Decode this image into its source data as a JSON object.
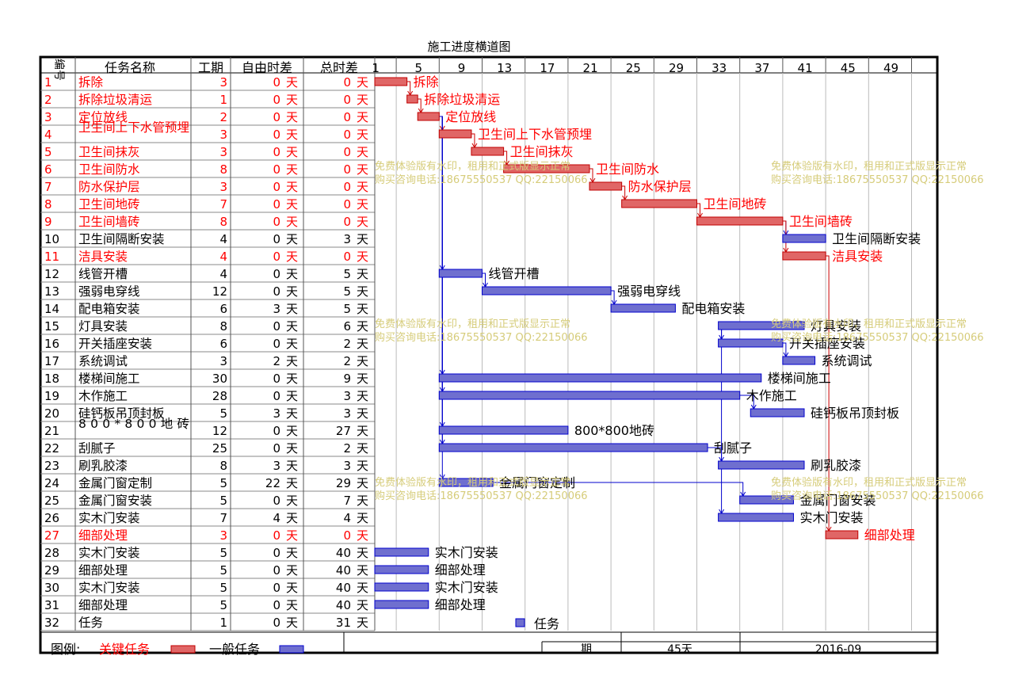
{
  "chart_title": "施工进度横道图",
  "columns": {
    "id": "编号",
    "name": "任务名称",
    "duration": "工期",
    "free_float": "自由时差",
    "total_float": "总时差"
  },
  "unit": "天",
  "timeline_ticks": [
    1,
    5,
    9,
    13,
    17,
    21,
    25,
    29,
    33,
    37,
    41,
    45,
    49
  ],
  "colors": {
    "critical_text": "#ff0000",
    "normal_text": "#000000",
    "critical_bar_fill": "#e06666",
    "critical_bar_stroke": "#c00000",
    "normal_bar_fill": "#6f6fcf",
    "normal_bar_stroke": "#0000cc",
    "link_critical": "#cc0000",
    "link_normal": "#0000cc",
    "watermark": "#d6cc7a"
  },
  "watermark_lines": [
    "免费体验版有水印，租用和正式版显示正常",
    "购买咨询电话:18675550537 QQ:22150066"
  ],
  "legend": {
    "label": "图例:",
    "critical": "关键任务",
    "normal": "一般任务",
    "task_legend": "任务",
    "footer_period_label": "期",
    "footer_duration": "45天",
    "footer_date": "2016-09"
  },
  "chart_data": {
    "type": "gantt",
    "title": "施工进度横道图",
    "x_unit": "天",
    "xlim": [
      1,
      50
    ],
    "tasks": [
      {
        "id": "1",
        "name": "拆除",
        "duration": "3",
        "free": "0",
        "total": "0",
        "critical": true,
        "start": 1,
        "bar_label": "拆除"
      },
      {
        "id": "2",
        "name": "拆除垃圾清运",
        "duration": "1",
        "free": "0",
        "total": "0",
        "critical": true,
        "start": 4,
        "bar_label": "拆除垃圾清运"
      },
      {
        "id": "3",
        "name": "定位放线",
        "duration": "2",
        "free": "0",
        "total": "0",
        "critical": true,
        "start": 5,
        "bar_label": "定位放线"
      },
      {
        "id": "4",
        "name": "卫生间上下水管预埋",
        "duration": "3",
        "free": "0",
        "total": "0",
        "critical": true,
        "start": 7,
        "bar_label": "卫生间上下水管预埋"
      },
      {
        "id": "5",
        "name": "卫生间抹灰",
        "duration": "3",
        "free": "0",
        "total": "0",
        "critical": true,
        "start": 10,
        "bar_label": "卫生间抹灰"
      },
      {
        "id": "6",
        "name": "卫生间防水",
        "duration": "8",
        "free": "0",
        "total": "0",
        "critical": true,
        "start": 13,
        "bar_label": "卫生间防水"
      },
      {
        "id": "7",
        "name": "防水保护层",
        "duration": "3",
        "free": "0",
        "total": "0",
        "critical": true,
        "start": 21,
        "bar_label": "防水保护层"
      },
      {
        "id": "8",
        "name": "卫生间地砖",
        "duration": "7",
        "free": "0",
        "total": "0",
        "critical": true,
        "start": 24,
        "bar_label": "卫生间地砖"
      },
      {
        "id": "9",
        "name": "卫生间墙砖",
        "duration": "8",
        "free": "0",
        "total": "0",
        "critical": true,
        "start": 31,
        "bar_label": "卫生间墙砖"
      },
      {
        "id": "10",
        "name": "卫生间隔断安装",
        "duration": "4",
        "free": "0",
        "total": "3",
        "critical": false,
        "start": 39,
        "bar_label": "卫生间隔断安装"
      },
      {
        "id": "11",
        "name": "洁具安装",
        "duration": "4",
        "free": "0",
        "total": "0",
        "critical": true,
        "start": 39,
        "bar_label": "洁具安装"
      },
      {
        "id": "12",
        "name": "线管开槽",
        "duration": "4",
        "free": "0",
        "total": "5",
        "critical": false,
        "start": 7,
        "bar_label": "线管开槽"
      },
      {
        "id": "13",
        "name": "强弱电穿线",
        "duration": "12",
        "free": "0",
        "total": "5",
        "critical": false,
        "start": 11,
        "bar_label": "强弱电穿线"
      },
      {
        "id": "14",
        "name": "配电箱安装",
        "duration": "6",
        "free": "3",
        "total": "5",
        "critical": false,
        "start": 23,
        "bar_label": "配电箱安装"
      },
      {
        "id": "15",
        "name": "灯具安装",
        "duration": "8",
        "free": "0",
        "total": "6",
        "critical": false,
        "start": 33,
        "bar_label": "灯具安装"
      },
      {
        "id": "16",
        "name": "开关插座安装",
        "duration": "6",
        "free": "0",
        "total": "2",
        "critical": false,
        "start": 33,
        "bar_label": "开关插座安装"
      },
      {
        "id": "17",
        "name": "系统调试",
        "duration": "3",
        "free": "2",
        "total": "2",
        "critical": false,
        "start": 39,
        "bar_label": "系统调试"
      },
      {
        "id": "18",
        "name": "楼梯间施工",
        "duration": "30",
        "free": "0",
        "total": "9",
        "critical": false,
        "start": 7,
        "bar_label": "楼梯间施工"
      },
      {
        "id": "19",
        "name": "木作施工",
        "duration": "28",
        "free": "0",
        "total": "3",
        "critical": false,
        "start": 7,
        "bar_label": "木作施工"
      },
      {
        "id": "20",
        "name": "硅钙板吊顶封板",
        "duration": "5",
        "free": "3",
        "total": "3",
        "critical": false,
        "start": 36,
        "bar_label": "硅钙板吊顶封板"
      },
      {
        "id": "21",
        "name": "800*800地砖",
        "duration": "12",
        "free": "0",
        "total": "27",
        "critical": false,
        "start": 7,
        "bar_label": "800*800地砖"
      },
      {
        "id": "22",
        "name": "刮腻子",
        "duration": "25",
        "free": "0",
        "total": "2",
        "critical": false,
        "start": 7,
        "bar_label": "刮腻子"
      },
      {
        "id": "23",
        "name": "刷乳胶漆",
        "duration": "8",
        "free": "3",
        "total": "3",
        "critical": false,
        "start": 33,
        "bar_label": "刷乳胶漆"
      },
      {
        "id": "24",
        "name": "金属门窗定制",
        "duration": "5",
        "free": "22",
        "total": "29",
        "critical": false,
        "start": 7,
        "bar_label": "金属门窗定制"
      },
      {
        "id": "25",
        "name": "金属门窗安装",
        "duration": "5",
        "free": "0",
        "total": "7",
        "critical": false,
        "start": 35,
        "bar_label": "金属门窗安装"
      },
      {
        "id": "26",
        "name": "实木门安装",
        "duration": "7",
        "free": "4",
        "total": "4",
        "critical": false,
        "start": 33,
        "bar_label": "实木门安装"
      },
      {
        "id": "27",
        "name": "细部处理",
        "duration": "3",
        "free": "0",
        "total": "0",
        "critical": true,
        "start": 43,
        "bar_label": "细部处理"
      },
      {
        "id": "28",
        "name": "实木门安装",
        "duration": "5",
        "free": "0",
        "total": "40",
        "critical": false,
        "start": 1,
        "bar_label": "实木门安装"
      },
      {
        "id": "29",
        "name": "细部处理",
        "duration": "5",
        "free": "0",
        "total": "40",
        "critical": false,
        "start": 1,
        "bar_label": "细部处理"
      },
      {
        "id": "30",
        "name": "实木门安装",
        "duration": "5",
        "free": "0",
        "total": "40",
        "critical": false,
        "start": 1,
        "bar_label": "实木门安装"
      },
      {
        "id": "31",
        "name": "细部处理",
        "duration": "5",
        "free": "0",
        "total": "40",
        "critical": false,
        "start": 1,
        "bar_label": "细部处理"
      },
      {
        "id": "32",
        "name": "任务",
        "duration": "1",
        "free": "0",
        "total": "31",
        "critical": false,
        "start": null,
        "bar_label": ""
      }
    ],
    "links": [
      [
        1,
        2
      ],
      [
        2,
        3
      ],
      [
        3,
        4
      ],
      [
        4,
        5
      ],
      [
        5,
        6
      ],
      [
        6,
        7
      ],
      [
        7,
        8
      ],
      [
        8,
        9
      ],
      [
        9,
        10
      ],
      [
        9,
        11
      ],
      [
        11,
        27
      ],
      [
        3,
        12
      ],
      [
        12,
        13
      ],
      [
        13,
        14
      ],
      [
        3,
        18
      ],
      [
        3,
        19
      ],
      [
        19,
        20
      ],
      [
        3,
        21
      ],
      [
        3,
        22
      ],
      [
        22,
        23
      ],
      [
        3,
        24
      ],
      [
        24,
        25
      ],
      [
        15,
        16
      ],
      [
        15,
        26
      ],
      [
        16,
        17
      ]
    ]
  }
}
